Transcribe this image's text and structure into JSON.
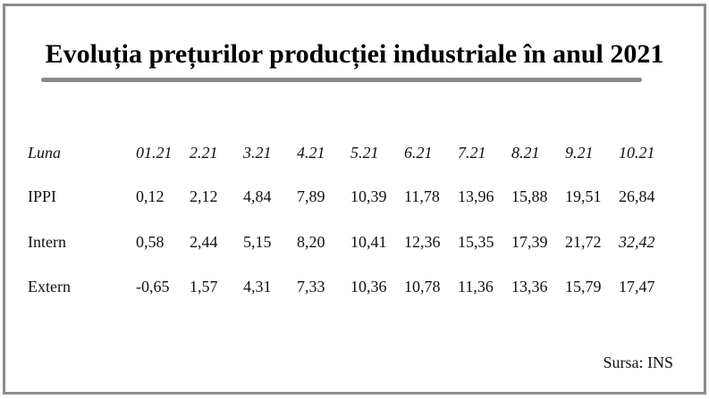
{
  "title": "Evoluția prețurilor producției industriale în anul 2021",
  "table": {
    "header": {
      "label": "Luna",
      "values": [
        "01.21",
        "2.21",
        "3.21",
        "4.21",
        "5.21",
        "6.21",
        "7.21",
        "8.21",
        "9.21",
        "10.21"
      ]
    },
    "rows": [
      {
        "label": "IPPI",
        "values": [
          "0,12",
          "2,12",
          "4,84",
          "7,89",
          "10,39",
          "11,78",
          "13,96",
          "15,88",
          "19,51",
          "26,84"
        ]
      },
      {
        "label": "Intern",
        "values": [
          "0,58",
          "2,44",
          "5,15",
          "8,20",
          "10,41",
          "12,36",
          "15,35",
          "17,39",
          "21,72",
          "32,42"
        ]
      },
      {
        "label": "Extern",
        "values": [
          "-0,65",
          "1,57",
          "4,31",
          "7,33",
          "10,36",
          "10,78",
          "11,36",
          "13,36",
          "15,79",
          "17,47"
        ]
      }
    ]
  },
  "source": "Sursa: INS"
}
